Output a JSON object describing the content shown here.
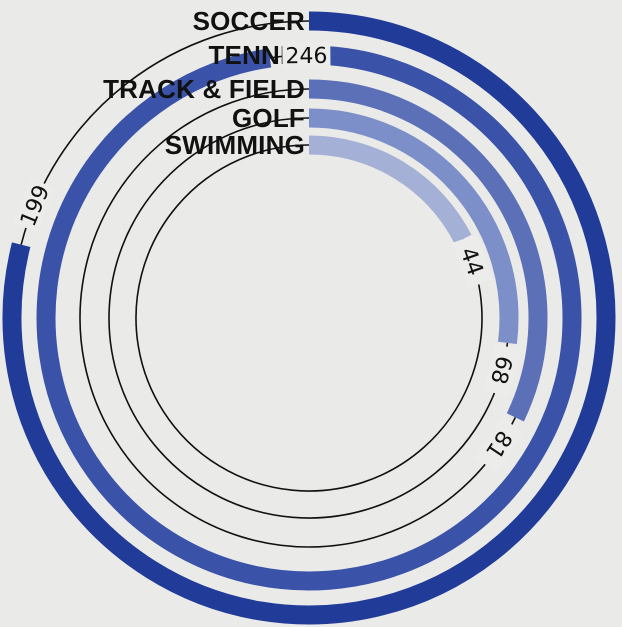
{
  "chart_data": {
    "type": "radial_bar",
    "categories": [
      "SOCCER",
      "TENNIS",
      "TRACK & FIELD",
      "GOLF",
      "SWIMMING"
    ],
    "values": [
      199,
      246,
      81,
      68,
      44
    ],
    "value_labels": [
      "199",
      "246",
      "81",
      "68",
      "44"
    ],
    "colors": [
      "#213b98",
      "#3a52a8",
      "#5c70b8",
      "#7d8fc8",
      "#a4b0d6"
    ],
    "track_color": "#111111",
    "background": "#ececea"
  }
}
